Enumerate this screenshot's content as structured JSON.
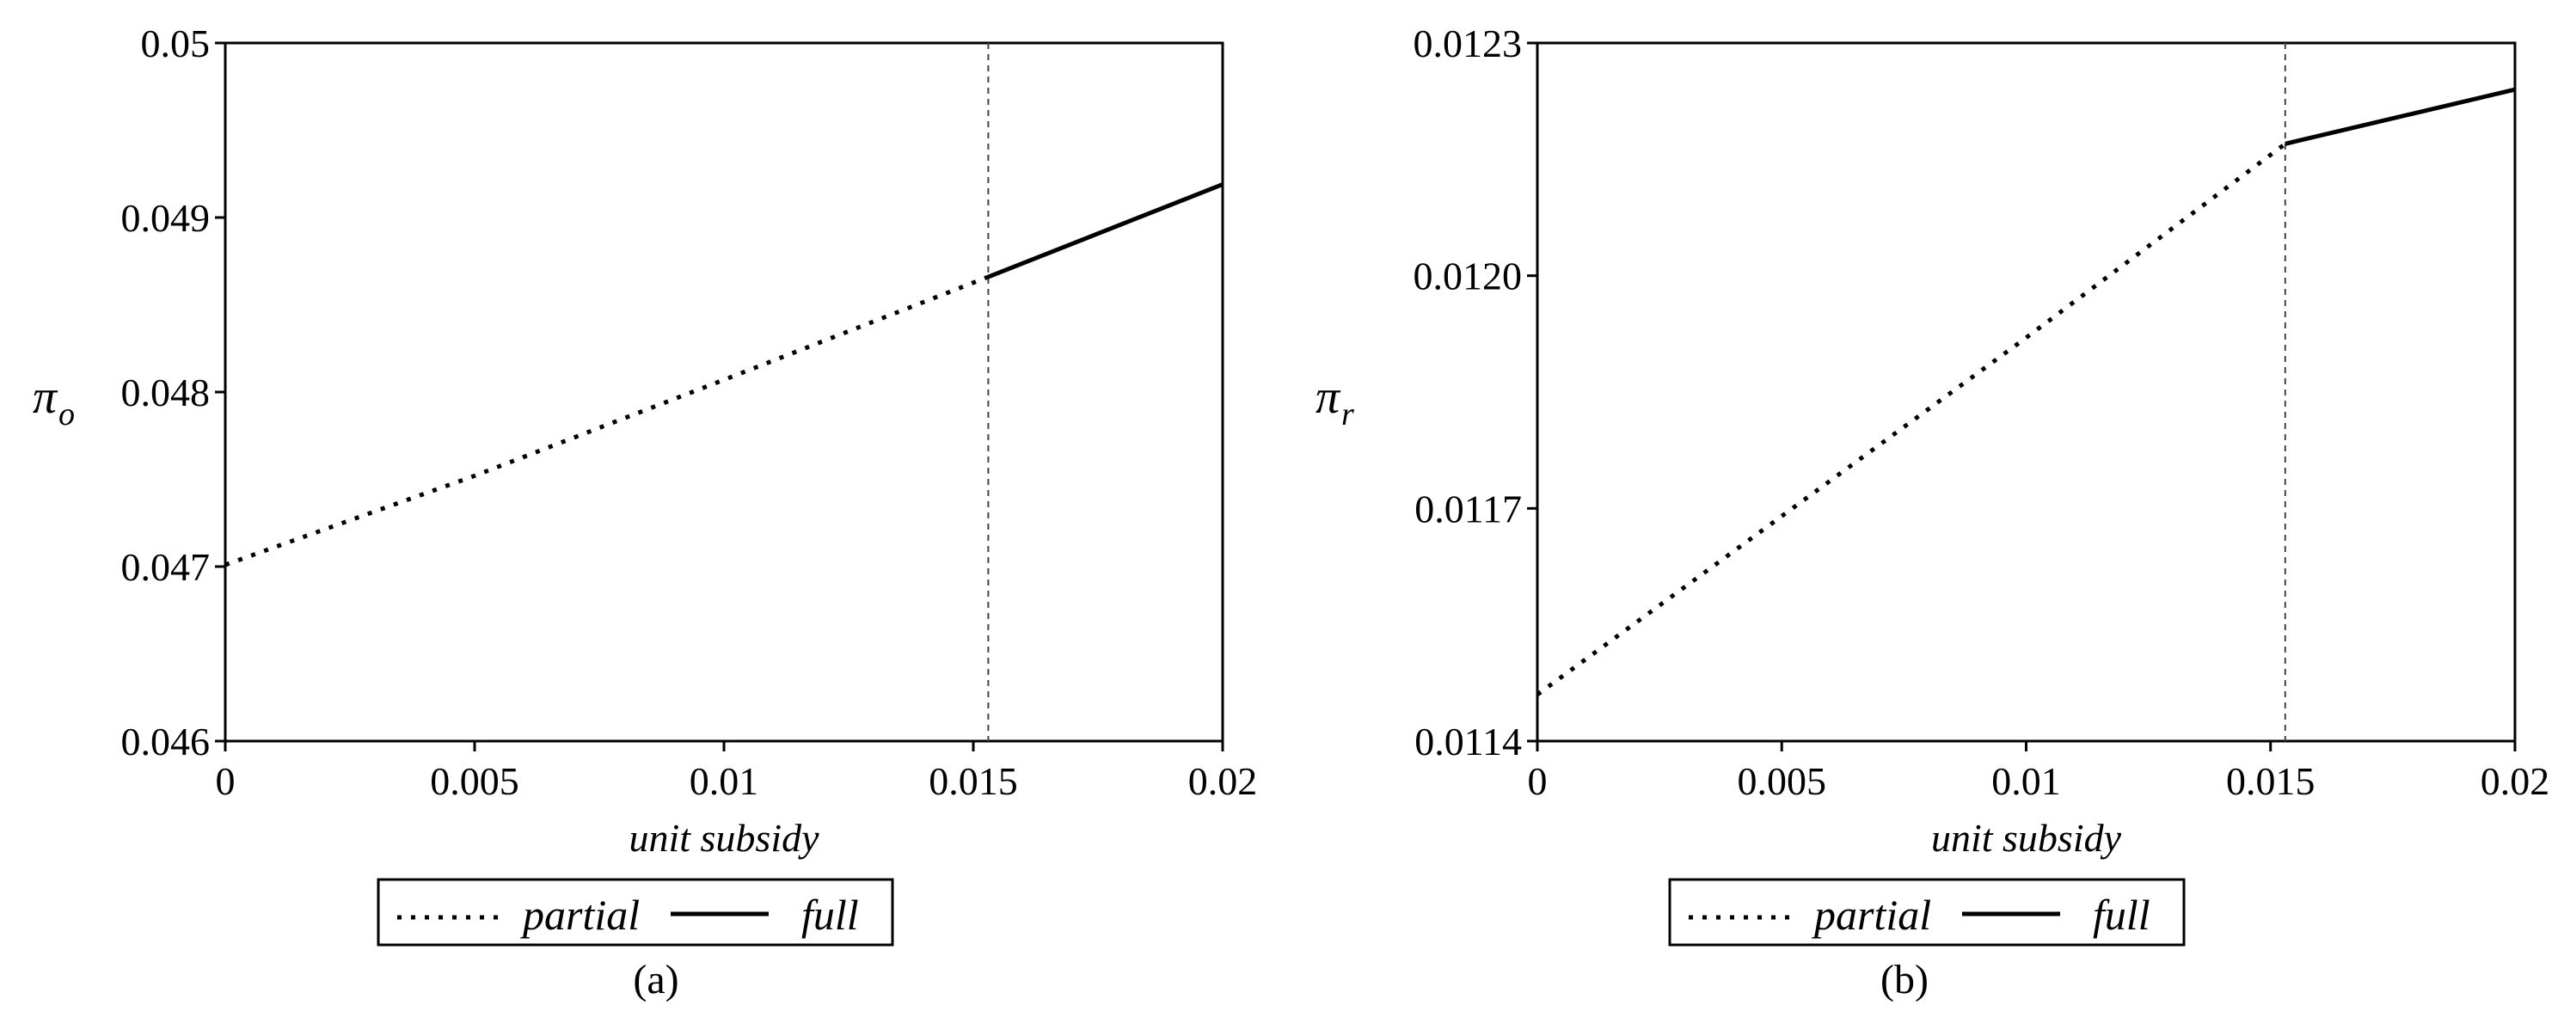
{
  "chart_data": [
    {
      "type": "line",
      "caption": "(a)",
      "ylabel": "π",
      "ylabel_sub": "o",
      "xlabel": "unit subsidy",
      "xlim": [
        0,
        0.02
      ],
      "ylim": [
        0.046,
        0.05
      ],
      "x_ticks": [
        0,
        0.005,
        0.01,
        0.015,
        0.02
      ],
      "x_tick_labels": [
        "0",
        "0.005",
        "0.01",
        "0.015",
        "0.02"
      ],
      "y_ticks": [
        0.046,
        0.047,
        0.048,
        0.049,
        0.05
      ],
      "y_tick_labels": [
        "0.046",
        "0.047",
        "0.048",
        "0.049",
        "0.05"
      ],
      "threshold_x": 0.0153,
      "legend": {
        "position": "bottom-center",
        "entries": [
          "partial",
          "full"
        ]
      },
      "series": [
        {
          "name": "partial",
          "style": "dotted",
          "x": [
            0,
            0.005,
            0.01,
            0.0153
          ],
          "y": [
            0.04701,
            0.04752,
            0.04807,
            0.04866
          ]
        },
        {
          "name": "full",
          "style": "solid",
          "x": [
            0.0153,
            0.02
          ],
          "y": [
            0.04866,
            0.04919
          ]
        }
      ]
    },
    {
      "type": "line",
      "caption": "(b)",
      "ylabel": "π",
      "ylabel_sub": "r",
      "xlabel": "unit subsidy",
      "xlim": [
        0,
        0.02
      ],
      "ylim": [
        0.0114,
        0.0123
      ],
      "x_ticks": [
        0,
        0.005,
        0.01,
        0.015,
        0.02
      ],
      "x_tick_labels": [
        "0",
        "0.005",
        "0.01",
        "0.015",
        "0.02"
      ],
      "y_ticks": [
        0.0114,
        0.0117,
        0.012,
        0.0123
      ],
      "y_tick_labels": [
        "0.0114",
        "0.0117",
        "0.0120",
        "0.0123"
      ],
      "threshold_x": 0.0153,
      "legend": {
        "position": "bottom-center",
        "entries": [
          "partial",
          "full"
        ]
      },
      "series": [
        {
          "name": "partial",
          "style": "dotted",
          "x": [
            0,
            0.005,
            0.01,
            0.0153
          ],
          "y": [
            0.01146,
            0.01169,
            0.01192,
            0.01217
          ]
        },
        {
          "name": "full",
          "style": "solid",
          "x": [
            0.0153,
            0.02
          ],
          "y": [
            0.01217,
            0.01224
          ]
        }
      ]
    }
  ]
}
